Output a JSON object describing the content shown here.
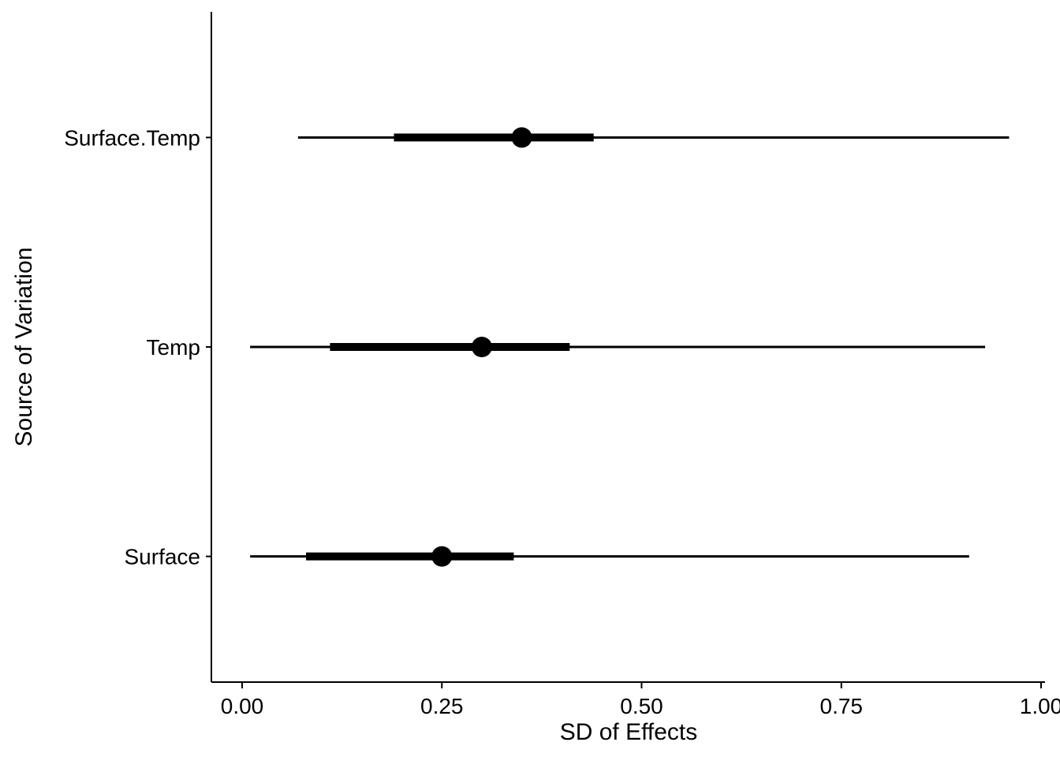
{
  "chart_data": {
    "type": "pointrange",
    "orientation": "horizontal",
    "title": "",
    "xlabel": "SD of Effects",
    "ylabel": "Source of Variation",
    "x_tick_labels": [
      "0.00",
      "0.25",
      "0.50",
      "0.75",
      "1.00"
    ],
    "x_tick_values": [
      0.0,
      0.25,
      0.5,
      0.75,
      1.0
    ],
    "xlim": [
      0.0,
      1.0
    ],
    "grid": false,
    "legend_position": "none",
    "colors": {
      "foreground": "#000000",
      "background": "#FFFFFF"
    },
    "series": [
      {
        "name": "Surface.Temp",
        "point": 0.35,
        "inner_interval": [
          0.19,
          0.44
        ],
        "outer_interval": [
          0.07,
          0.96
        ]
      },
      {
        "name": "Temp",
        "point": 0.3,
        "inner_interval": [
          0.11,
          0.41
        ],
        "outer_interval": [
          0.01,
          0.93
        ]
      },
      {
        "name": "Surface",
        "point": 0.25,
        "inner_interval": [
          0.08,
          0.34
        ],
        "outer_interval": [
          0.01,
          0.91
        ]
      }
    ]
  }
}
